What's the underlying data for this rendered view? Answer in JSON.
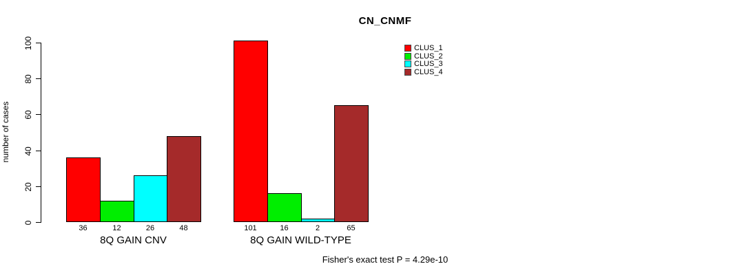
{
  "page": {
    "background": "#FFFFFF"
  },
  "chart_data": {
    "type": "bar",
    "title": "CN_CNMF",
    "ylabel": "number of cases",
    "xlabel": "",
    "ylim": [
      0,
      100
    ],
    "yticks": [
      0,
      20,
      40,
      60,
      80,
      100
    ],
    "grid": false,
    "legend_position": "top-right",
    "series": [
      {
        "name": "CLUS_1",
        "color": "#FF0000"
      },
      {
        "name": "CLUS_2",
        "color": "#00EE00"
      },
      {
        "name": "CLUS_3",
        "color": "#00FFFF"
      },
      {
        "name": "CLUS_4",
        "color": "#A52A2A"
      }
    ],
    "groups": [
      {
        "label": "8Q GAIN CNV",
        "values": [
          36,
          12,
          26,
          48
        ],
        "value_labels": [
          "36",
          "12",
          "26",
          "48"
        ]
      },
      {
        "label": "8Q GAIN WILD-TYPE",
        "values": [
          101,
          16,
          2,
          65
        ],
        "value_labels": [
          "101",
          "16",
          "2",
          "65"
        ]
      }
    ],
    "annotation": "Fisher's exact test P = 4.29e-10"
  }
}
